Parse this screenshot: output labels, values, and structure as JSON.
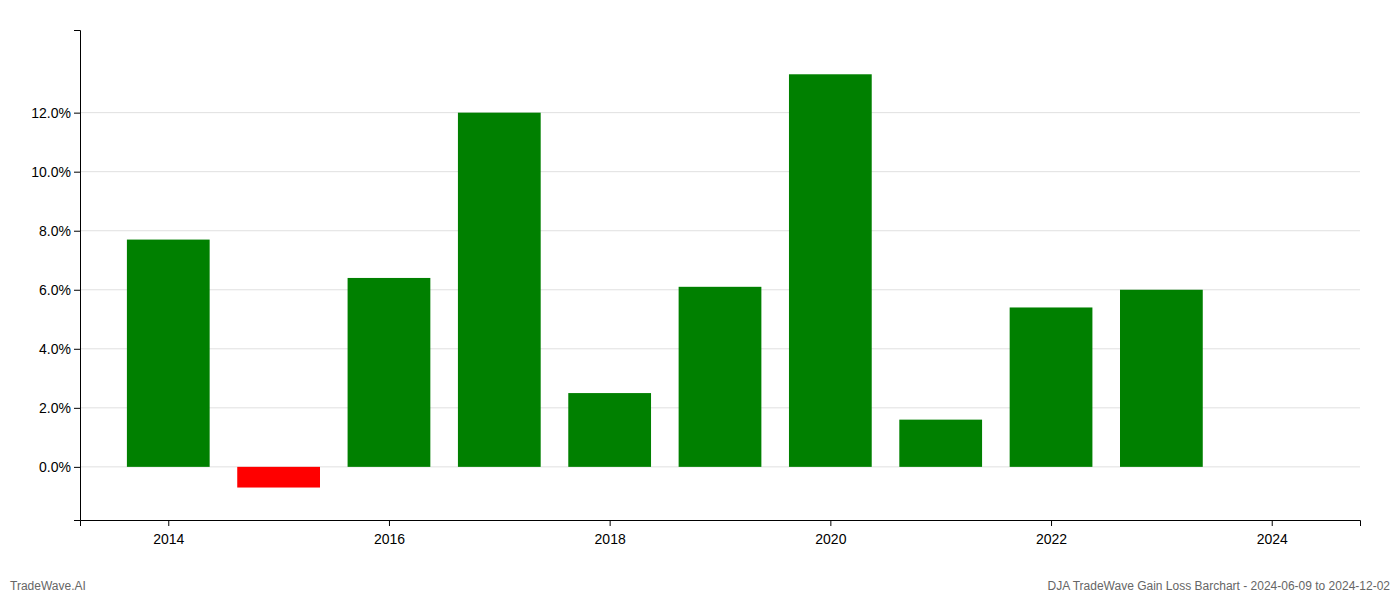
{
  "chart_data": {
    "type": "bar",
    "title": "DJA TradeWave Gain Loss Barchart - 2024-06-09 to 2024-12-02",
    "annotations": [
      "TradeWave.AI"
    ],
    "x": [
      2014,
      2015,
      2016,
      2017,
      2018,
      2019,
      2020,
      2021,
      2022,
      2023
    ],
    "values": [
      0.077,
      -0.007,
      0.064,
      0.12,
      0.025,
      0.061,
      0.133,
      0.016,
      0.054,
      0.06
    ],
    "colors": [
      "#008000",
      "#ff0000",
      "#008000",
      "#008000",
      "#008000",
      "#008000",
      "#008000",
      "#008000",
      "#008000",
      "#008000"
    ],
    "xlim": [
      2013.2,
      2024.8
    ],
    "xticks": [
      2014,
      2016,
      2018,
      2020,
      2022,
      2024
    ],
    "ylim": [
      -0.018,
      0.148
    ],
    "yticks": [
      {
        "value": 0.0,
        "label": "0.0%"
      },
      {
        "value": 0.02,
        "label": "2.0%"
      },
      {
        "value": 0.04,
        "label": "4.0%"
      },
      {
        "value": 0.06,
        "label": "6.0%"
      },
      {
        "value": 0.08,
        "label": "8.0%"
      },
      {
        "value": 0.1,
        "label": "10.0%"
      },
      {
        "value": 0.12,
        "label": "12.0%"
      }
    ],
    "grid": "y"
  }
}
